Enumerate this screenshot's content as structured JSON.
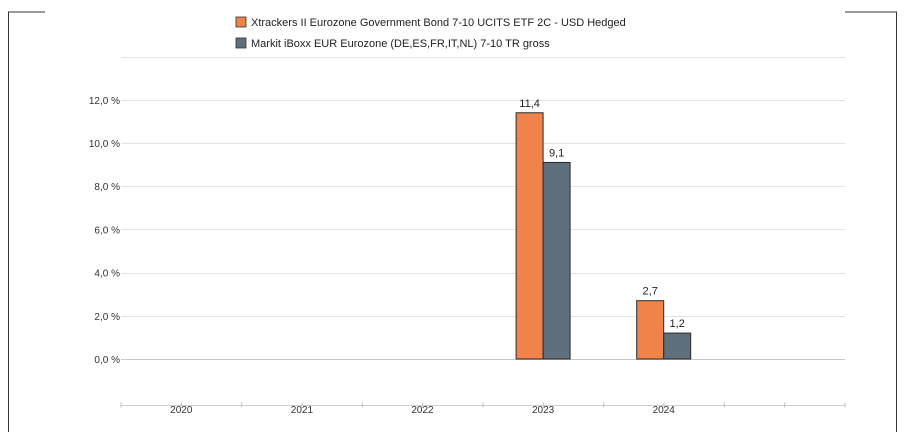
{
  "chart_data": {
    "type": "bar",
    "title": "",
    "xlabel": "",
    "ylabel": "",
    "categories": [
      "2020",
      "2021",
      "2022",
      "2023",
      "2024"
    ],
    "series": [
      {
        "name": "Xtrackers II Eurozone Government Bond 7-10 UCITS ETF 2C - USD Hedged",
        "color": "#f0834a",
        "values": [
          null,
          null,
          null,
          11.4,
          2.7
        ],
        "labels": [
          "",
          "",
          "",
          "11,4",
          "2,7"
        ]
      },
      {
        "name": "Markit iBoxx EUR Eurozone (DE,ES,FR,IT,NL) 7-10 TR gross",
        "color": "#5f6f7b",
        "values": [
          null,
          null,
          null,
          9.1,
          1.2
        ],
        "labels": [
          "",
          "",
          "",
          "9,1",
          "1,2"
        ]
      }
    ],
    "ylim": [
      0,
      14
    ],
    "yticks": [
      0,
      2,
      4,
      6,
      8,
      10,
      12
    ],
    "ytick_labels": [
      "0,0 %",
      "2,0 %",
      "4,0 %",
      "6,0 %",
      "8,0 %",
      "10,0 %",
      "12,0 %"
    ],
    "grid": true,
    "legend_position": "top"
  }
}
